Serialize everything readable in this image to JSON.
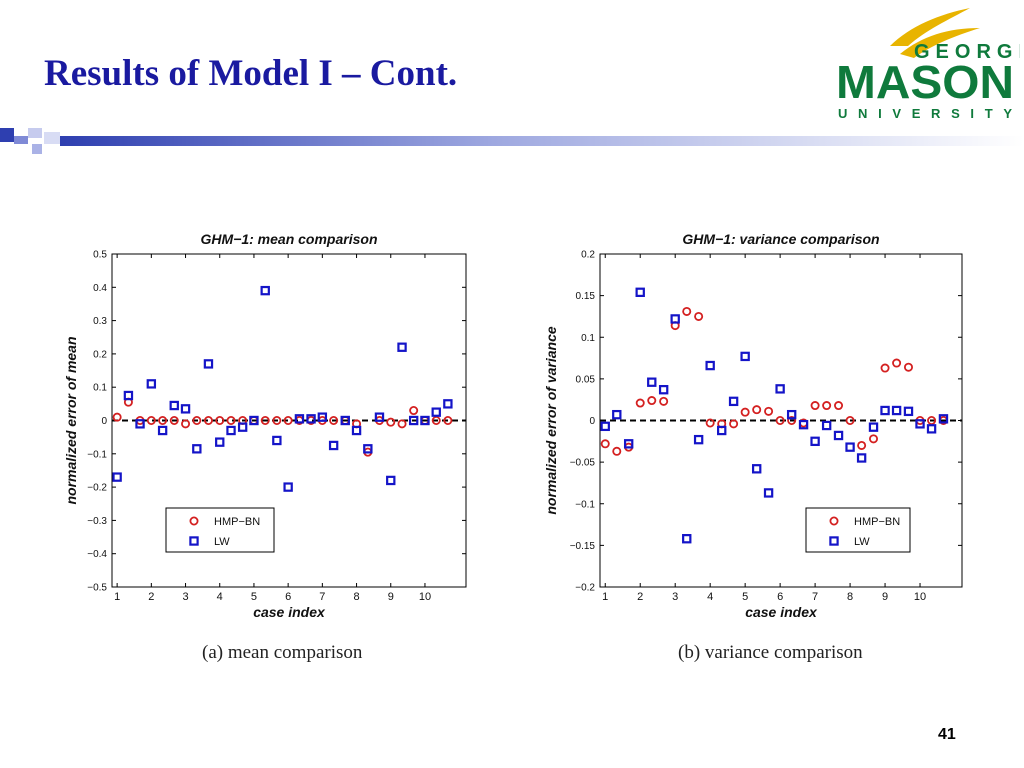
{
  "slide": {
    "title": "Results of  Model I – Cont.",
    "page_number": "41",
    "logo": {
      "line1": "GEORGE",
      "line2": "MASON",
      "line3": "UNIVERSITY",
      "colors": {
        "green": "#0f7a3c",
        "gold": "#e8b400"
      }
    },
    "captions": [
      "(a) mean comparison",
      "(b) variance comparison"
    ]
  },
  "chart_data": [
    {
      "type": "scatter",
      "title": "GHM−1: mean comparison",
      "xlabel": "case index",
      "ylabel": "normalized error of mean",
      "xlim": [
        0.85,
        11.2
      ],
      "ylim": [
        -0.5,
        0.5
      ],
      "xticks": [
        1,
        2,
        3,
        4,
        5,
        6,
        7,
        8,
        9,
        10
      ],
      "yticks": [
        -0.5,
        -0.4,
        -0.3,
        -0.2,
        -0.1,
        0,
        0.1,
        0.2,
        0.3,
        0.4,
        0.5
      ],
      "ytick_labels": [
        "−0.5",
        "−0.4",
        "−0.3",
        "−0.2",
        "−0.1",
        "0",
        "0.1",
        "0.2",
        "0.3",
        "0.4",
        "0.5"
      ],
      "grid": false,
      "zero_line": true,
      "legend": {
        "placement": "lower-left"
      },
      "series": [
        {
          "name": "HMP−BN",
          "marker": "circle",
          "color": "#d42020",
          "x": [
            1.0,
            1.33,
            1.67,
            2.0,
            2.33,
            2.67,
            3.0,
            3.33,
            3.67,
            4.0,
            4.33,
            4.67,
            5.0,
            5.33,
            5.67,
            6.0,
            6.33,
            6.67,
            7.0,
            7.33,
            7.67,
            8.0,
            8.33,
            8.67,
            9.0,
            9.33,
            9.67,
            10.0,
            10.33,
            10.67
          ],
          "y": [
            0.01,
            0.055,
            0.0,
            0.0,
            0.0,
            0.0,
            -0.01,
            0.0,
            0.0,
            0.0,
            0.0,
            0.0,
            0.0,
            0.0,
            0.0,
            0.0,
            0.0,
            0.0,
            0.0,
            0.0,
            0.0,
            -0.01,
            -0.095,
            0.0,
            -0.005,
            -0.01,
            0.03,
            0.0,
            0.0,
            0.0
          ]
        },
        {
          "name": "LW",
          "marker": "square",
          "color": "#1414c8",
          "x": [
            1.0,
            1.33,
            1.67,
            2.0,
            2.33,
            2.67,
            3.0,
            3.33,
            3.67,
            4.0,
            4.33,
            4.67,
            5.0,
            5.33,
            5.67,
            6.0,
            6.33,
            6.67,
            7.0,
            7.33,
            7.67,
            8.0,
            8.33,
            8.67,
            9.0,
            9.33,
            9.67,
            10.0,
            10.33,
            10.67
          ],
          "y": [
            -0.17,
            0.075,
            -0.01,
            0.11,
            -0.03,
            0.045,
            0.035,
            -0.085,
            0.17,
            -0.065,
            -0.03,
            -0.02,
            0.0,
            0.39,
            -0.06,
            -0.2,
            0.005,
            0.005,
            0.01,
            -0.075,
            0.0,
            -0.03,
            -0.085,
            0.01,
            -0.18,
            0.22,
            0.0,
            0.0,
            0.025,
            0.05
          ]
        }
      ]
    },
    {
      "type": "scatter",
      "title": "GHM−1: variance comparison",
      "xlabel": "case index",
      "ylabel": "normalized error of variance",
      "xlim": [
        0.85,
        11.2
      ],
      "ylim": [
        -0.2,
        0.2
      ],
      "xticks": [
        1,
        2,
        3,
        4,
        5,
        6,
        7,
        8,
        9,
        10
      ],
      "yticks": [
        -0.2,
        -0.15,
        -0.1,
        -0.05,
        0,
        0.05,
        0.1,
        0.15,
        0.2
      ],
      "ytick_labels": [
        "−0.2",
        "−0.15",
        "−0.1",
        "−0.05",
        "0",
        "0.05",
        "0.1",
        "0.15",
        "0.2"
      ],
      "grid": false,
      "zero_line": true,
      "legend": {
        "placement": "lower-right"
      },
      "series": [
        {
          "name": "HMP−BN",
          "marker": "circle",
          "color": "#d42020",
          "x": [
            1.0,
            1.33,
            1.67,
            2.0,
            2.33,
            2.67,
            3.0,
            3.33,
            3.67,
            4.0,
            4.33,
            4.67,
            5.0,
            5.33,
            5.67,
            6.0,
            6.33,
            6.67,
            7.0,
            7.33,
            7.67,
            8.0,
            8.33,
            8.67,
            9.0,
            9.33,
            9.67,
            10.0,
            10.33,
            10.67
          ],
          "y": [
            -0.028,
            -0.037,
            -0.032,
            0.021,
            0.024,
            0.023,
            0.114,
            0.131,
            0.125,
            -0.003,
            -0.004,
            -0.004,
            0.01,
            0.013,
            0.011,
            0.0,
            0.0,
            -0.003,
            0.018,
            0.018,
            0.018,
            0.0,
            -0.03,
            -0.022,
            0.063,
            0.069,
            0.064,
            0.0,
            0.0,
            0.0
          ]
        },
        {
          "name": "LW",
          "marker": "square",
          "color": "#1414c8",
          "x": [
            1.0,
            1.33,
            1.67,
            2.0,
            2.33,
            2.67,
            3.0,
            3.33,
            3.67,
            4.0,
            4.33,
            4.67,
            5.0,
            5.33,
            5.67,
            6.0,
            6.33,
            6.67,
            7.0,
            7.33,
            7.67,
            8.0,
            8.33,
            8.67,
            9.0,
            9.33,
            9.67,
            10.0,
            10.33,
            10.67
          ],
          "y": [
            -0.007,
            0.007,
            -0.028,
            0.154,
            0.046,
            0.037,
            0.122,
            -0.142,
            -0.023,
            0.066,
            -0.012,
            0.023,
            0.077,
            -0.058,
            -0.087,
            0.038,
            0.007,
            -0.005,
            -0.025,
            -0.006,
            -0.018,
            -0.032,
            -0.045,
            -0.008,
            0.012,
            0.012,
            0.011,
            -0.004,
            -0.01,
            0.002
          ]
        }
      ]
    }
  ]
}
